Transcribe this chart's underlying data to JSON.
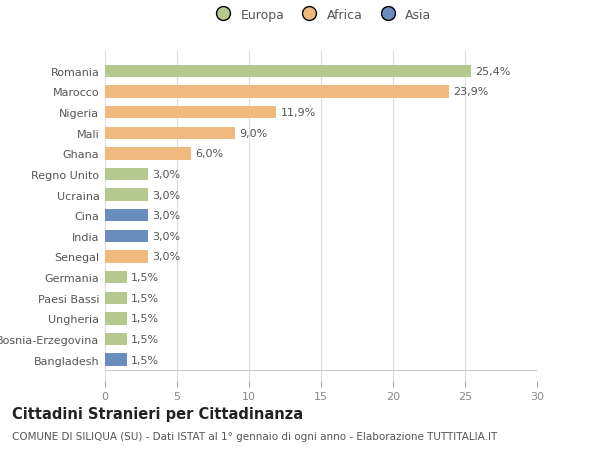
{
  "countries": [
    "Romania",
    "Marocco",
    "Nigeria",
    "Mali",
    "Ghana",
    "Regno Unito",
    "Ucraina",
    "Cina",
    "India",
    "Senegal",
    "Germania",
    "Paesi Bassi",
    "Ungheria",
    "Bosnia-Erzegovina",
    "Bangladesh"
  ],
  "values": [
    25.4,
    23.9,
    11.9,
    9.0,
    6.0,
    3.0,
    3.0,
    3.0,
    3.0,
    3.0,
    1.5,
    1.5,
    1.5,
    1.5,
    1.5
  ],
  "categories": [
    "Europa",
    "Africa",
    "Africa",
    "Africa",
    "Africa",
    "Europa",
    "Europa",
    "Asia",
    "Asia",
    "Africa",
    "Europa",
    "Europa",
    "Europa",
    "Europa",
    "Asia"
  ],
  "colors": {
    "Europa": "#b5c98e",
    "Africa": "#f0b97d",
    "Asia": "#6b8dbd"
  },
  "legend_labels": [
    "Europa",
    "Africa",
    "Asia"
  ],
  "legend_colors": [
    "#b5c98e",
    "#f0b97d",
    "#6b8dbd"
  ],
  "title": "Cittadini Stranieri per Cittadinanza",
  "subtitle": "COMUNE DI SILIQUA (SU) - Dati ISTAT al 1° gennaio di ogni anno - Elaborazione TUTTITALIA.IT",
  "xlim": [
    0,
    30
  ],
  "xticks": [
    0,
    5,
    10,
    15,
    20,
    25,
    30
  ],
  "bg_color": "#ffffff",
  "bar_height": 0.6,
  "label_fontsize": 8,
  "tick_fontsize": 8,
  "title_fontsize": 10.5,
  "subtitle_fontsize": 7.5
}
